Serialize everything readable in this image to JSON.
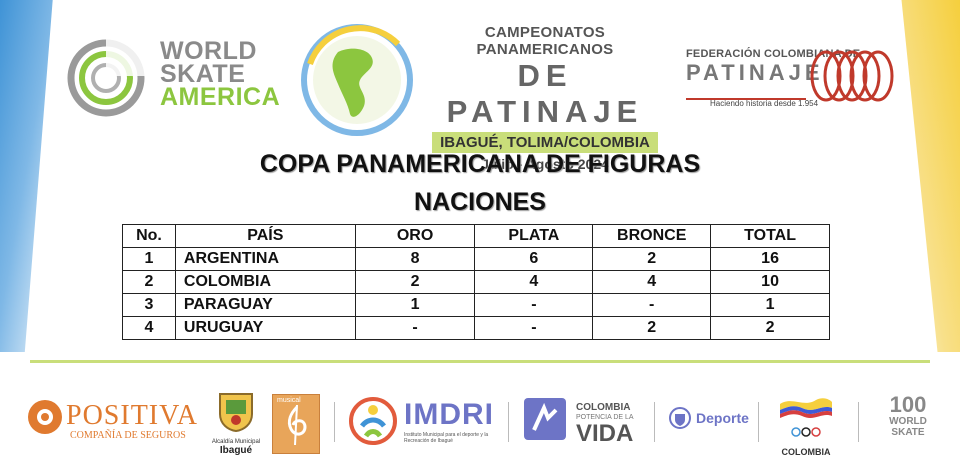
{
  "header": {
    "world_skate": {
      "line1": "WORLD",
      "line2": "SKATE",
      "line3": "AMERICA"
    },
    "championship": {
      "line1": "CAMPEONATOS PANAMERICANOS",
      "line2": "DE PATINAJE",
      "location": "IBAGUÉ, TOLIMA/COLOMBIA",
      "dates": "Julio - Agosto 2024"
    },
    "federation": {
      "line1": "FEDERACIÓN COLOMBIANA DE",
      "line2": "PATINAJE",
      "tagline": "Haciendo historia desde 1.954"
    }
  },
  "title": "COPA PANAMERICANA DE FIGURAS",
  "subtitle": "NACIONES",
  "table": {
    "columns": [
      "No.",
      "PAÍS",
      "ORO",
      "PLATA",
      "BRONCE",
      "TOTAL"
    ],
    "rows": [
      {
        "no": "1",
        "country": "ARGENTINA",
        "oro": "8",
        "plata": "6",
        "bronce": "2",
        "total": "16"
      },
      {
        "no": "2",
        "country": "COLOMBIA",
        "oro": "2",
        "plata": "4",
        "bronce": "4",
        "total": "10"
      },
      {
        "no": "3",
        "country": "PARAGUAY",
        "oro": "1",
        "plata": "-",
        "bronce": "-",
        "total": "1"
      },
      {
        "no": "4",
        "country": "URUGUAY",
        "oro": "-",
        "plata": "-",
        "bronce": "2",
        "total": "2"
      }
    ]
  },
  "sponsors": {
    "positiva": {
      "name": "POSITIVA",
      "sub": "COMPAÑÍA DE SEGUROS"
    },
    "alcaldia": {
      "line1": "Alcaldía Municipal",
      "line2": "Ibagué"
    },
    "musical": {
      "label": "musical"
    },
    "imdri": {
      "name": "IMDRI",
      "sub": "Instituto Municipal para el deporte y la Recreación de Ibagué"
    },
    "colombia_vida": {
      "line1": "COLOMBIA",
      "line2": "POTENCIA DE LA",
      "line3": "VIDA"
    },
    "deporte": {
      "name": "Deporte"
    },
    "coc": {
      "name": "COLOMBIA"
    },
    "ws100": {
      "line1": "100",
      "line2": "WORLD",
      "line3": "SKATE"
    }
  },
  "colors": {
    "green_accent": "#8cc63f",
    "band_green": "#c9de7a",
    "left_blue": "#3f93d6",
    "right_yellow": "#f5cf3d",
    "federation_red": "#c0392b"
  }
}
